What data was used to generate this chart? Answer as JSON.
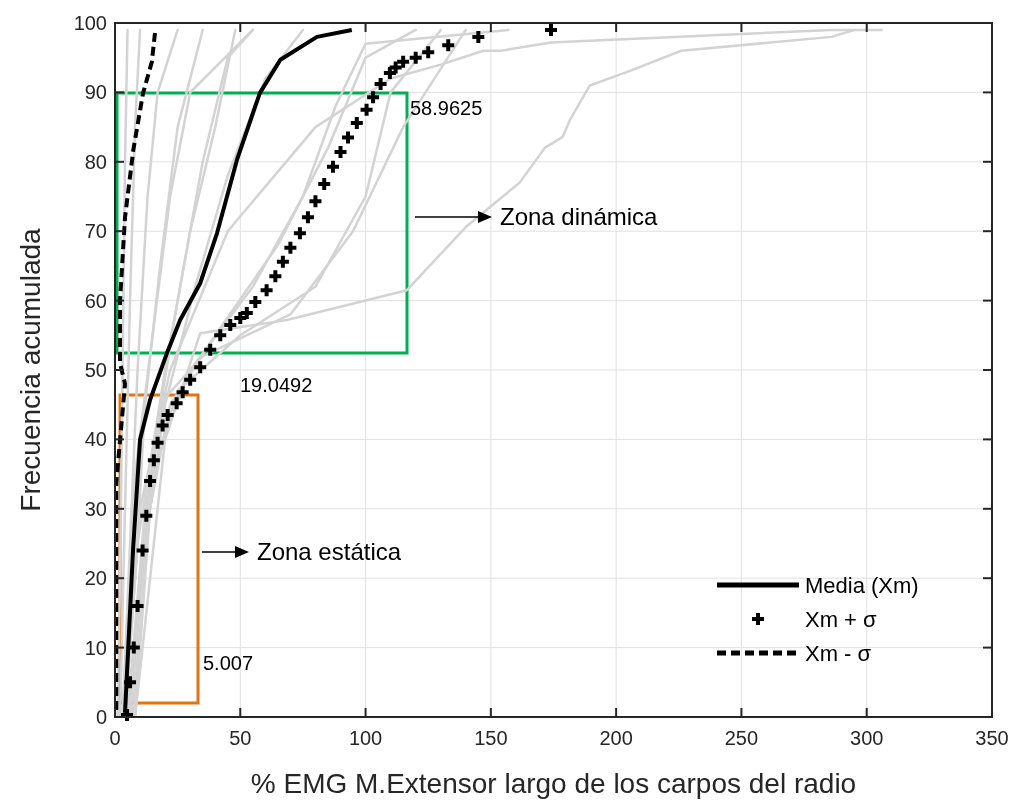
{
  "chart_data": {
    "type": "line",
    "xlabel": "% EMG M.Extensor largo de los carpos del radio",
    "ylabel": "Frecuencia acumulada",
    "xlim": [
      0,
      350
    ],
    "ylim": [
      0,
      100
    ],
    "xticks": [
      0,
      50,
      100,
      150,
      200,
      250,
      300,
      350
    ],
    "yticks": [
      0,
      10,
      20,
      30,
      40,
      50,
      60,
      70,
      80,
      90,
      100
    ],
    "grid": true,
    "legend": "bottom right",
    "series": [
      {
        "color": "#d3d3d3",
        "x": [
          8,
          20,
          34,
          68.6,
          116.5,
          140,
          161.5,
          171.5,
          178.7,
          181.5,
          189.5,
          205.5,
          226,
          286,
          295
        ],
        "values": [
          0,
          40,
          55.3,
          57.2,
          61.5,
          70.6,
          77,
          82,
          83.6,
          86,
          91,
          93.1,
          96,
          98,
          99
        ]
      },
      {
        "color": "#d3d3d3",
        "x": [
          4,
          10,
          22,
          45,
          80,
          110,
          130,
          147,
          154,
          174,
          286,
          306
        ],
        "values": [
          0,
          30,
          50,
          70,
          85,
          92,
          94,
          96,
          96,
          97.2,
          99,
          99
        ]
      },
      {
        "color": "#d3d3d3",
        "x": [
          1,
          2,
          3,
          4,
          5
        ],
        "values": [
          0,
          20,
          50,
          80,
          99
        ]
      },
      {
        "color": "#d3d3d3",
        "x": [
          2,
          4,
          6,
          8,
          10
        ],
        "values": [
          0,
          30,
          60,
          85,
          99
        ]
      },
      {
        "color": "#d3d3d3",
        "x": [
          3,
          6,
          9,
          13,
          17,
          25
        ],
        "values": [
          0,
          25,
          50,
          75,
          90,
          99
        ]
      },
      {
        "color": "#d3d3d3",
        "x": [
          4,
          8,
          12,
          18,
          25,
          35
        ],
        "values": [
          0,
          20,
          45,
          65,
          85,
          99
        ]
      },
      {
        "color": "#d3d3d3",
        "x": [
          5,
          10,
          16,
          25,
          35,
          45,
          55
        ],
        "values": [
          0,
          20,
          40,
          60,
          80,
          95,
          99
        ]
      },
      {
        "color": "#d3d3d3",
        "x": [
          6,
          12,
          20,
          32,
          45,
          60,
          75
        ],
        "values": [
          0,
          25,
          45,
          62,
          78,
          92,
          99
        ]
      },
      {
        "color": "#d3d3d3",
        "x": [
          7,
          14,
          22,
          40,
          65,
          85,
          100,
          120
        ],
        "values": [
          0,
          30,
          45,
          55,
          68,
          82,
          95,
          99
        ]
      },
      {
        "color": "#d3d3d3",
        "x": [
          8,
          15,
          25,
          50,
          80,
          100,
          110,
          130
        ],
        "values": [
          0,
          35,
          47,
          55,
          62,
          75,
          90,
          99
        ]
      },
      {
        "color": "#d3d3d3",
        "x": [
          5,
          12,
          20,
          35,
          70,
          95,
          115,
          140
        ],
        "values": [
          0,
          30,
          46,
          52,
          58,
          70,
          85,
          99
        ]
      },
      {
        "color": "#d3d3d3",
        "x": [
          6,
          14,
          30,
          55,
          75,
          88,
          100,
          157
        ],
        "values": [
          0,
          35,
          50,
          62,
          75,
          88,
          97,
          99
        ]
      },
      {
        "color": "#d3d3d3",
        "x": [
          3,
          8,
          15,
          22,
          30,
          55
        ],
        "values": [
          0,
          35,
          55,
          75,
          90,
          99
        ]
      },
      {
        "color": "#d3d3d3",
        "x": [
          4,
          9,
          20,
          30,
          40,
          48
        ],
        "values": [
          0,
          25,
          50,
          70,
          85,
          99
        ]
      },
      {
        "name": "Media (Xm)",
        "color": "#000000",
        "line_style": "solid",
        "x": [
          4,
          7.2,
          10,
          14,
          20.7,
          26,
          34,
          40.7,
          48.7,
          57.8,
          66,
          80.6,
          94.5
        ],
        "values": [
          0.6,
          24,
          40,
          45.7,
          52.4,
          57.2,
          62.5,
          69.7,
          80.3,
          89.9,
          94.7,
          98,
          99
        ]
      },
      {
        "name": "Xm + σ",
        "type": "scatter",
        "marker": "cross",
        "color": "#000000",
        "x": [
          4.8,
          6,
          7.5,
          9,
          11,
          12.5,
          14,
          15.5,
          17,
          19,
          21,
          24.6,
          27,
          30,
          34,
          38,
          42,
          46,
          50,
          52.6,
          56,
          60.5,
          64,
          67,
          70,
          73.8,
          77,
          80,
          83.5,
          87,
          90,
          93,
          96.5,
          100.4,
          103,
          106,
          109.7,
          112,
          115,
          120,
          125,
          133,
          145,
          174
        ],
        "values": [
          0.3,
          5,
          10,
          16,
          24,
          29,
          34,
          37,
          39.5,
          42,
          43.5,
          45.2,
          46.8,
          48.6,
          50.4,
          52.9,
          55,
          56.5,
          57.5,
          58.2,
          59.8,
          61.5,
          63.5,
          65.6,
          67.6,
          69.7,
          72,
          74.3,
          76.8,
          79.3,
          81.4,
          83.5,
          85.6,
          87.5,
          89.3,
          91.2,
          92.8,
          93.6,
          94.4,
          95,
          95.8,
          96.8,
          98,
          99
        ]
      },
      {
        "name": "Xm - σ",
        "line_style": "dashed",
        "color": "#000000",
        "x": [
          0.5,
          0.5,
          4,
          2,
          2,
          4,
          7.3,
          11.2,
          14.7,
          16
        ],
        "values": [
          1,
          33.7,
          48,
          51,
          60,
          72,
          81.7,
          89.9,
          94.4,
          98.7
        ]
      }
    ],
    "annotations": [
      "58.9625",
      "19.0492",
      "5.007",
      "Zona dinámica",
      "Zona estática"
    ]
  }
}
